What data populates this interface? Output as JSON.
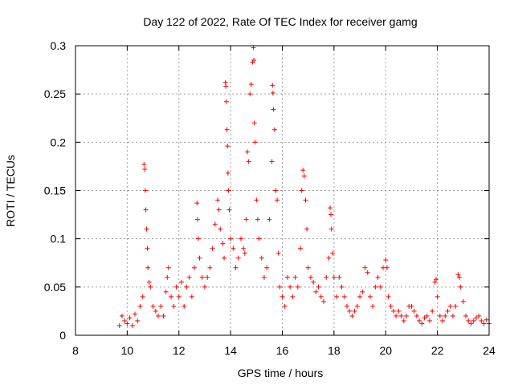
{
  "chart_data": {
    "type": "scatter",
    "title": "Day 122 of 2022, Rate Of TEC Index for receiver gamg",
    "xlabel": "GPS time / hours",
    "ylabel": "ROTI / TECUs",
    "xlim": [
      8,
      24
    ],
    "ylim": [
      0,
      0.3
    ],
    "xticks": [
      "8",
      "10",
      "12",
      "14",
      "16",
      "18",
      "20",
      "22",
      "24"
    ],
    "xtick_values": [
      8,
      10,
      12,
      14,
      16,
      18,
      20,
      22,
      24
    ],
    "yticks": [
      "0",
      "0.05",
      "0.1",
      "0.15",
      "0.2",
      "0.25",
      "0.3"
    ],
    "ytick_values": [
      0,
      0.05,
      0.1,
      0.15,
      0.2,
      0.25,
      0.3
    ],
    "grid": true,
    "marker": "+",
    "color": "#ff0000",
    "series": [
      {
        "name": "ROTI",
        "points": [
          [
            9.7,
            0.01
          ],
          [
            9.8,
            0.02
          ],
          [
            9.9,
            0.015
          ],
          [
            10.0,
            0.012
          ],
          [
            10.1,
            0.018
          ],
          [
            10.2,
            0.01
          ],
          [
            10.3,
            0.022
          ],
          [
            10.4,
            0.015
          ],
          [
            10.5,
            0.03
          ],
          [
            10.6,
            0.04
          ],
          [
            10.65,
            0.177
          ],
          [
            10.68,
            0.172
          ],
          [
            10.7,
            0.15
          ],
          [
            10.72,
            0.13
          ],
          [
            10.75,
            0.11
          ],
          [
            10.78,
            0.09
          ],
          [
            10.8,
            0.07
          ],
          [
            10.85,
            0.055
          ],
          [
            10.9,
            0.05
          ],
          [
            11.0,
            0.03
          ],
          [
            11.1,
            0.025
          ],
          [
            11.2,
            0.02
          ],
          [
            11.3,
            0.03
          ],
          [
            11.4,
            0.02
          ],
          [
            11.5,
            0.045
          ],
          [
            11.55,
            0.06
          ],
          [
            11.6,
            0.07
          ],
          [
            11.7,
            0.04
          ],
          [
            11.8,
            0.03
          ],
          [
            11.9,
            0.05
          ],
          [
            12.0,
            0.04
          ],
          [
            12.1,
            0.055
          ],
          [
            12.2,
            0.03
          ],
          [
            12.3,
            0.05
          ],
          [
            12.4,
            0.06
          ],
          [
            12.5,
            0.04
          ],
          [
            12.6,
            0.07
          ],
          [
            12.7,
            0.137
          ],
          [
            12.72,
            0.12
          ],
          [
            12.75,
            0.1
          ],
          [
            12.8,
            0.08
          ],
          [
            12.9,
            0.06
          ],
          [
            13.0,
            0.05
          ],
          [
            13.1,
            0.06
          ],
          [
            13.2,
            0.07
          ],
          [
            13.3,
            0.09
          ],
          [
            13.4,
            0.115
          ],
          [
            13.5,
            0.14
          ],
          [
            13.55,
            0.13
          ],
          [
            13.6,
            0.11
          ],
          [
            13.7,
            0.095
          ],
          [
            13.75,
            0.08
          ],
          [
            13.8,
            0.262
          ],
          [
            13.82,
            0.258
          ],
          [
            13.84,
            0.242
          ],
          [
            13.86,
            0.213
          ],
          [
            13.88,
            0.196
          ],
          [
            13.9,
            0.168
          ],
          [
            13.92,
            0.15
          ],
          [
            13.95,
            0.13
          ],
          [
            14.0,
            0.1
          ],
          [
            14.1,
            0.09
          ],
          [
            14.2,
            0.07
          ],
          [
            14.3,
            0.08
          ],
          [
            14.4,
            0.1
          ],
          [
            14.5,
            0.09
          ],
          [
            14.55,
            0.085
          ],
          [
            14.6,
            0.12
          ],
          [
            14.65,
            0.19
          ],
          [
            14.7,
            0.18
          ],
          [
            14.75,
            0.25
          ],
          [
            14.8,
            0.26
          ],
          [
            14.85,
            0.283
          ],
          [
            14.88,
            0.298
          ],
          [
            14.9,
            0.285
          ],
          [
            14.92,
            0.22
          ],
          [
            14.95,
            0.2
          ],
          [
            15.0,
            0.14
          ],
          [
            15.05,
            0.12
          ],
          [
            15.1,
            0.1
          ],
          [
            15.2,
            0.08
          ],
          [
            15.3,
            0.06
          ],
          [
            15.4,
            0.07
          ],
          [
            15.5,
            0.12
          ],
          [
            15.6,
            0.18
          ],
          [
            15.62,
            0.259
          ],
          [
            15.64,
            0.251
          ],
          [
            15.66,
            0.234
          ],
          [
            15.7,
            0.213
          ],
          [
            15.75,
            0.15
          ],
          [
            15.8,
            0.14
          ],
          [
            15.85,
            0.085
          ],
          [
            15.9,
            0.05
          ],
          [
            16.0,
            0.04
          ],
          [
            16.1,
            0.03
          ],
          [
            16.2,
            0.06
          ],
          [
            16.3,
            0.05
          ],
          [
            16.4,
            0.04
          ],
          [
            16.5,
            0.06
          ],
          [
            16.6,
            0.05
          ],
          [
            16.7,
            0.09
          ],
          [
            16.75,
            0.15
          ],
          [
            16.8,
            0.171
          ],
          [
            16.85,
            0.165
          ],
          [
            16.9,
            0.14
          ],
          [
            16.95,
            0.11
          ],
          [
            17.0,
            0.07
          ],
          [
            17.1,
            0.06
          ],
          [
            17.2,
            0.055
          ],
          [
            17.3,
            0.045
          ],
          [
            17.4,
            0.05
          ],
          [
            17.5,
            0.04
          ],
          [
            17.6,
            0.035
          ],
          [
            17.7,
            0.06
          ],
          [
            17.8,
            0.08
          ],
          [
            17.85,
            0.132
          ],
          [
            17.88,
            0.125
          ],
          [
            17.9,
            0.11
          ],
          [
            17.95,
            0.085
          ],
          [
            18.0,
            0.06
          ],
          [
            18.1,
            0.04
          ],
          [
            18.2,
            0.06
          ],
          [
            18.3,
            0.05
          ],
          [
            18.4,
            0.04
          ],
          [
            18.5,
            0.03
          ],
          [
            18.6,
            0.025
          ],
          [
            18.7,
            0.02
          ],
          [
            18.8,
            0.025
          ],
          [
            18.9,
            0.03
          ],
          [
            19.0,
            0.04
          ],
          [
            19.1,
            0.045
          ],
          [
            19.2,
            0.07
          ],
          [
            19.3,
            0.065
          ],
          [
            19.4,
            0.04
          ],
          [
            19.5,
            0.03
          ],
          [
            19.6,
            0.05
          ],
          [
            19.7,
            0.06
          ],
          [
            19.8,
            0.05
          ],
          [
            19.9,
            0.07
          ],
          [
            20.0,
            0.078
          ],
          [
            20.05,
            0.07
          ],
          [
            20.1,
            0.04
          ],
          [
            20.2,
            0.03
          ],
          [
            20.3,
            0.025
          ],
          [
            20.4,
            0.02
          ],
          [
            20.5,
            0.025
          ],
          [
            20.6,
            0.02
          ],
          [
            20.7,
            0.015
          ],
          [
            20.8,
            0.02
          ],
          [
            20.9,
            0.03
          ],
          [
            21.0,
            0.03
          ],
          [
            21.1,
            0.025
          ],
          [
            21.2,
            0.02
          ],
          [
            21.3,
            0.015
          ],
          [
            21.4,
            0.012
          ],
          [
            21.5,
            0.018
          ],
          [
            21.6,
            0.02
          ],
          [
            21.7,
            0.015
          ],
          [
            21.8,
            0.025
          ],
          [
            21.9,
            0.055
          ],
          [
            21.95,
            0.058
          ],
          [
            22.0,
            0.04
          ],
          [
            22.1,
            0.02
          ],
          [
            22.2,
            0.015
          ],
          [
            22.3,
            0.02
          ],
          [
            22.4,
            0.025
          ],
          [
            22.5,
            0.03
          ],
          [
            22.6,
            0.02
          ],
          [
            22.7,
            0.03
          ],
          [
            22.8,
            0.063
          ],
          [
            22.85,
            0.06
          ],
          [
            22.9,
            0.05
          ],
          [
            23.0,
            0.035
          ],
          [
            23.1,
            0.02
          ],
          [
            23.2,
            0.015
          ],
          [
            23.3,
            0.012
          ],
          [
            23.4,
            0.015
          ],
          [
            23.5,
            0.018
          ],
          [
            23.6,
            0.02
          ],
          [
            23.7,
            0.015
          ],
          [
            23.8,
            0.012
          ],
          [
            23.9,
            0.016
          ],
          [
            24.0,
            0.012
          ]
        ]
      }
    ]
  }
}
